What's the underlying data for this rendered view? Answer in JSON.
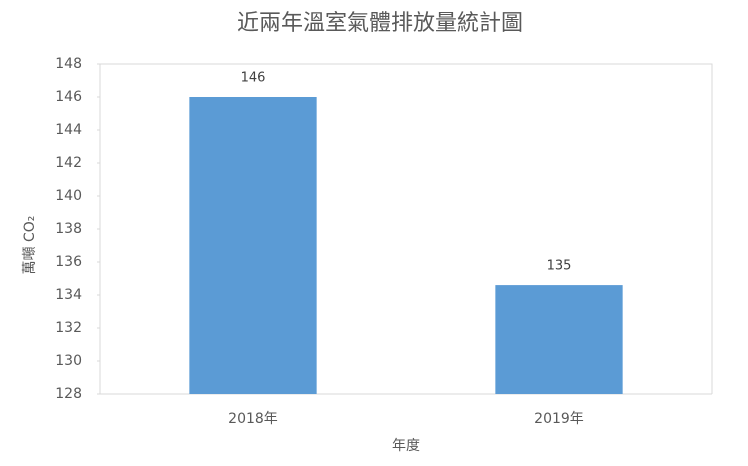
{
  "chart_data": {
    "type": "bar",
    "title": "近兩年溫室氣體排放量統計圖",
    "x_label": "年度",
    "y_label": "萬噸 CO₂",
    "categories": [
      "2018年",
      "2019年"
    ],
    "values": [
      146,
      134.6
    ],
    "value_labels": [
      "146",
      "135"
    ],
    "color": "#5b9bd5",
    "ylim": [
      128,
      148
    ],
    "yticks": [
      128,
      130,
      132,
      134,
      136,
      138,
      140,
      142,
      144,
      146,
      148
    ],
    "grid": false
  }
}
